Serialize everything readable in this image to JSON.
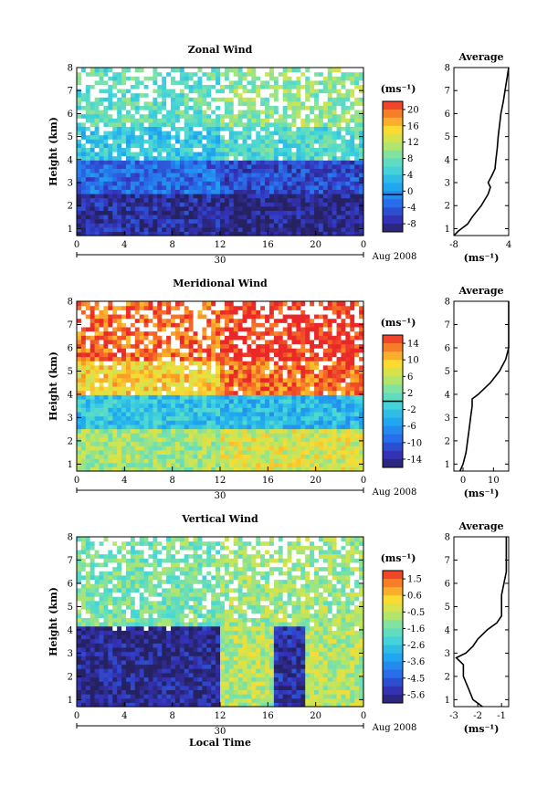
{
  "chart_data": [
    {
      "type": "heatmap",
      "title": "Zonal Wind",
      "xlabel": "",
      "ylabel": "Height (km)",
      "xlim": [
        0,
        24
      ],
      "ylim": [
        0.7,
        8
      ],
      "x_ticks": [
        "0",
        "4",
        "8",
        "12",
        "16",
        "20",
        "0"
      ],
      "y_ticks": [
        "1",
        "2",
        "3",
        "4",
        "5",
        "6",
        "7",
        "8"
      ],
      "date_label": "30",
      "date_suffix": "Aug 2008",
      "unit": "(ms⁻¹)",
      "colorbar": {
        "min": -8,
        "max": 20,
        "ticks": [
          "20",
          "16",
          "12",
          "8",
          "4",
          "0",
          "-4",
          "-8"
        ],
        "zero_line": 0
      },
      "layers": [
        {
          "h0": 0.7,
          "h1": 2.5,
          "v_before": -6,
          "v_after": -7
        },
        {
          "h0": 2.5,
          "h1": 4.0,
          "v_before": -2,
          "v_after": -4
        },
        {
          "h0": 4.0,
          "h1": 5.5,
          "v_before": 4,
          "v_after": 6
        },
        {
          "h0": 5.5,
          "h1": 8.0,
          "v_before": 7,
          "v_after": 9
        }
      ],
      "events": [],
      "average": {
        "title": "Average",
        "xlim": [
          -8,
          4
        ],
        "x_ticks": [
          "-8",
          "4"
        ],
        "xlabel": "(ms⁻¹)",
        "heights": [
          0.7,
          0.9,
          1.2,
          1.5,
          2.0,
          2.5,
          2.8,
          3.0,
          3.3,
          3.6,
          4.0,
          4.5,
          5.0,
          5.5,
          6.0,
          6.5,
          7.0,
          7.5,
          8.0
        ],
        "values": [
          -8,
          -7,
          -5,
          -4,
          -2,
          -0.5,
          0,
          -0.5,
          0.3,
          1.0,
          1.2,
          1.5,
          1.7,
          2.0,
          2.3,
          2.8,
          3.2,
          3.6,
          4.0
        ]
      }
    },
    {
      "type": "heatmap",
      "title": "Meridional Wind",
      "xlabel": "",
      "ylabel": "Height (km)",
      "xlim": [
        0,
        24
      ],
      "ylim": [
        0.7,
        8
      ],
      "x_ticks": [
        "0",
        "4",
        "8",
        "12",
        "16",
        "20",
        "0"
      ],
      "y_ticks": [
        "1",
        "2",
        "3",
        "4",
        "5",
        "6",
        "7",
        "8"
      ],
      "date_label": "30",
      "date_suffix": "Aug 2008",
      "unit": "(ms⁻¹)",
      "colorbar": {
        "min": -14,
        "max": 14,
        "ticks": [
          "14",
          "10",
          "6",
          "2",
          "-2",
          "-6",
          "-10",
          "-14"
        ],
        "zero_line": 0
      },
      "layers": [
        {
          "h0": 0.7,
          "h1": 2.5,
          "v_before": 4,
          "v_after": 6
        },
        {
          "h0": 2.5,
          "h1": 4.0,
          "v_before": -2,
          "v_after": -3
        },
        {
          "h0": 4.0,
          "h1": 5.5,
          "v_before": 8,
          "v_after": 12
        },
        {
          "h0": 5.5,
          "h1": 8.0,
          "v_before": 12,
          "v_after": 14
        }
      ],
      "events": [],
      "average": {
        "title": "Average",
        "xlim": [
          -3,
          15
        ],
        "x_ticks": [
          "0",
          "10"
        ],
        "xlabel": "(ms⁻¹)",
        "heights": [
          0.7,
          1.0,
          1.5,
          2.0,
          2.5,
          3.0,
          3.5,
          3.8,
          4.0,
          4.5,
          5.0,
          5.5,
          6.0,
          6.5,
          7.0,
          7.5,
          8.0
        ],
        "values": [
          -1,
          0,
          1,
          1.5,
          2,
          2.5,
          3,
          3,
          5,
          9,
          12,
          14,
          15,
          15,
          15,
          15,
          15
        ]
      }
    },
    {
      "type": "heatmap",
      "title": "Vertical Wind",
      "xlabel": "Local Time",
      "ylabel": "Height (km)",
      "xlim": [
        0,
        24
      ],
      "ylim": [
        0.7,
        8
      ],
      "x_ticks": [
        "0",
        "4",
        "8",
        "12",
        "16",
        "20",
        "0"
      ],
      "y_ticks": [
        "1",
        "2",
        "3",
        "4",
        "5",
        "6",
        "7",
        "8"
      ],
      "date_label": "30",
      "date_suffix": "Aug 2008",
      "unit": "(ms⁻¹)",
      "colorbar": {
        "min": -6.2,
        "max": 2.2,
        "ticks": [
          "1.5",
          "0.6",
          "-0.5",
          "-1.6",
          "-2.6",
          "-3.6",
          "-4.5",
          "-5.6"
        ],
        "zero_line": null
      },
      "layers": [
        {
          "h0": 0.7,
          "h1": 4.2,
          "v_before": -5.8,
          "v_after": -0.6
        },
        {
          "h0": 4.2,
          "h1": 8.0,
          "v_before": -1.4,
          "v_after": -0.9
        }
      ],
      "events": [
        {
          "t0": 5.0,
          "t1": 10.0,
          "h1": 4.2,
          "v": -5.8
        },
        {
          "t0": 16.5,
          "t1": 19.0,
          "h1": 4.2,
          "v": -5.6
        }
      ],
      "average": {
        "title": "Average",
        "xlim": [
          -3,
          -0.7
        ],
        "x_ticks": [
          "-3",
          "-2",
          "-1"
        ],
        "xlabel": "(ms⁻¹)",
        "heights": [
          0.7,
          1.0,
          1.5,
          2.0,
          2.5,
          2.8,
          3.0,
          3.3,
          3.6,
          4.0,
          4.3,
          4.6,
          5.0,
          5.5,
          6.0,
          6.5,
          7.0,
          7.5,
          8.0
        ],
        "values": [
          -1.8,
          -2.2,
          -2.4,
          -2.6,
          -2.6,
          -2.9,
          -2.5,
          -2.2,
          -2.0,
          -1.6,
          -1.2,
          -1.0,
          -1.0,
          -1.0,
          -0.9,
          -0.8,
          -0.8,
          -0.8,
          -0.8
        ]
      }
    }
  ]
}
